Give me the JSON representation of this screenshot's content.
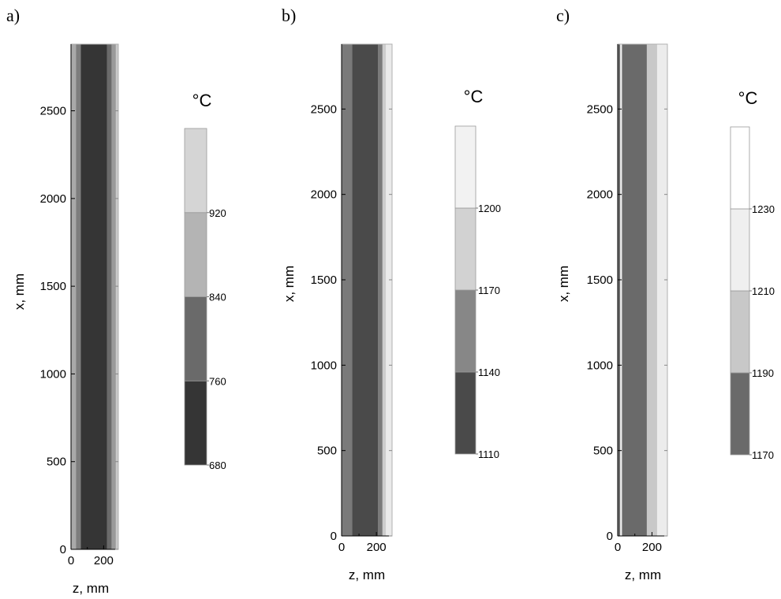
{
  "figure": {
    "background": "#ffffff",
    "axis_color": "#000000",
    "frame_color": "#b0b0b0"
  },
  "chart_data": [
    {
      "panel": "a)",
      "type": "heatmap",
      "xlabel": "z, mm",
      "ylabel": "x, mm",
      "xlim": [
        0,
        290
      ],
      "ylim": [
        0,
        2880
      ],
      "xticks": [
        0,
        200
      ],
      "yticks": [
        0,
        500,
        1000,
        1500,
        2000,
        2500
      ],
      "bands": [
        {
          "z0": 0,
          "z1": 30,
          "color": "#a9a9a9"
        },
        {
          "z0": 30,
          "z1": 60,
          "color": "#7d7d7d"
        },
        {
          "z0": 60,
          "z1": 220,
          "color": "#353535"
        },
        {
          "z0": 220,
          "z1": 250,
          "color": "#6a6a6a"
        },
        {
          "z0": 250,
          "z1": 275,
          "color": "#9a9a9a"
        },
        {
          "z0": 275,
          "z1": 290,
          "color": "#c9c9c9"
        }
      ],
      "colorbar": {
        "unit": "°C",
        "levels": [
          {
            "lo": 680,
            "hi": 760,
            "color": "#353535",
            "label": "680"
          },
          {
            "lo": 760,
            "hi": 840,
            "color": "#6a6a6a",
            "label": "760"
          },
          {
            "lo": 840,
            "hi": 920,
            "color": "#b4b4b4",
            "label": "840"
          },
          {
            "lo": 920,
            "hi": 1000,
            "color": "#d5d5d5",
            "label": "920"
          }
        ]
      }
    },
    {
      "panel": "b)",
      "type": "heatmap",
      "xlabel": "z, mm",
      "ylabel": "x, mm",
      "xlim": [
        0,
        290
      ],
      "ylim": [
        0,
        2880
      ],
      "xticks": [
        0,
        200
      ],
      "yticks": [
        0,
        500,
        1000,
        1500,
        2000,
        2500
      ],
      "bands": [
        {
          "z0": 0,
          "z1": 60,
          "color": "#7a7a7a"
        },
        {
          "z0": 60,
          "z1": 210,
          "color": "#4a4a4a"
        },
        {
          "z0": 210,
          "z1": 235,
          "color": "#7a7a7a"
        },
        {
          "z0": 235,
          "z1": 255,
          "color": "#cccccc"
        },
        {
          "z0": 255,
          "z1": 290,
          "color": "#eaeaea"
        }
      ],
      "colorbar": {
        "unit": "°C",
        "levels": [
          {
            "lo": 1110,
            "hi": 1140,
            "color": "#4a4a4a",
            "label": "1110"
          },
          {
            "lo": 1140,
            "hi": 1170,
            "color": "#878787",
            "label": "1140"
          },
          {
            "lo": 1170,
            "hi": 1200,
            "color": "#d2d2d2",
            "label": "1170"
          },
          {
            "lo": 1200,
            "hi": 1230,
            "color": "#f2f2f2",
            "label": "1200"
          }
        ]
      }
    },
    {
      "panel": "c)",
      "type": "heatmap",
      "xlabel": "z, mm",
      "ylabel": "x, mm",
      "xlim": [
        0,
        290
      ],
      "ylim": [
        0,
        2880
      ],
      "xticks": [
        0,
        200
      ],
      "yticks": [
        0,
        500,
        1000,
        1500,
        2000,
        2500
      ],
      "bands": [
        {
          "z0": 0,
          "z1": 15,
          "color": "#6a6a6a"
        },
        {
          "z0": 15,
          "z1": 25,
          "color": "#f0f0f0"
        },
        {
          "z0": 25,
          "z1": 170,
          "color": "#6a6a6a"
        },
        {
          "z0": 170,
          "z1": 230,
          "color": "#c8c8c8"
        },
        {
          "z0": 230,
          "z1": 290,
          "color": "#ececec"
        }
      ],
      "colorbar": {
        "unit": "°C",
        "levels": [
          {
            "lo": 1170,
            "hi": 1190,
            "color": "#6a6a6a",
            "label": "1170"
          },
          {
            "lo": 1190,
            "hi": 1210,
            "color": "#c8c8c8",
            "label": "1190"
          },
          {
            "lo": 1210,
            "hi": 1230,
            "color": "#efefef",
            "label": "1210"
          },
          {
            "lo": 1230,
            "hi": 1250,
            "color": "#ffffff",
            "label": "1230"
          }
        ]
      }
    }
  ]
}
